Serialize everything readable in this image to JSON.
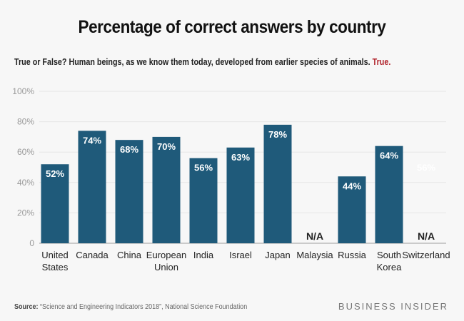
{
  "chart_data": {
    "type": "bar",
    "title": "Percentage of correct answers by country",
    "subtitle": "True or False? Human beings, as we know them today, developed from earlier species of animals.",
    "answer": "True.",
    "categories": [
      [
        "United",
        "States"
      ],
      [
        "Canada"
      ],
      [
        "China"
      ],
      [
        "European",
        "Union"
      ],
      [
        "India"
      ],
      [
        "Israel"
      ],
      [
        "Japan"
      ],
      [
        "Malaysia"
      ],
      [
        "Russia"
      ],
      [
        "South",
        "Korea"
      ],
      [
        "Switzerland"
      ]
    ],
    "values": [
      52,
      74,
      68,
      70,
      56,
      63,
      78,
      null,
      44,
      64,
      null
    ],
    "labels": [
      "52%",
      "74%",
      "68%",
      "70%",
      "56%",
      "63%",
      "78%",
      "N/A",
      "44%",
      "64%",
      "N/A"
    ],
    "ghost_label": "56%",
    "yticks": [
      0,
      20,
      40,
      60,
      80,
      100
    ],
    "ytick_labels": [
      "0",
      "20%",
      "40%",
      "60%",
      "80%",
      "100%"
    ],
    "ylim": [
      0,
      100
    ],
    "grid": true,
    "bar_color": "#1f5a7a",
    "answer_color": "#b0222a"
  },
  "footer": {
    "source_label": "Source:",
    "source_text": "“Science and Engineering Indicators 2018”, National Science Foundation",
    "brand": "BUSINESS INSIDER"
  }
}
